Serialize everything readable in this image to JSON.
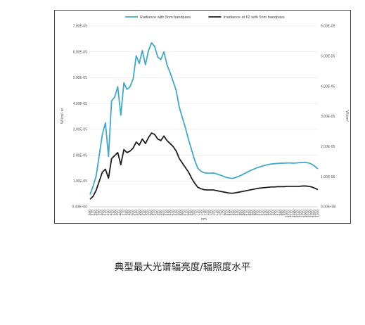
{
  "caption": "典型最大光谱辐亮度/辐照度水平",
  "chart_data": {
    "type": "line",
    "xlabel": "nm",
    "ylabel_left": "W/cm²-sr",
    "ylabel_right": "W/cm²",
    "ylim_left": [
      0,
      7e-05
    ],
    "ylim_right": [
      0,
      6e-05
    ],
    "yticks_left": [
      "0.00E+00",
      "1.00E-05",
      "2.00E-05",
      "3.00E-05",
      "4.00E-05",
      "5.00E-05",
      "6.00E-05",
      "7.00E-05"
    ],
    "yticks_right": [
      "0.00E+00",
      "1.00E-05",
      "2.00E-05",
      "3.00E-05",
      "4.00E-05",
      "5.00E-05",
      "6.00E-05"
    ],
    "legend_position": "top",
    "x": [
      360,
      370,
      380,
      390,
      400,
      410,
      420,
      430,
      440,
      450,
      460,
      470,
      480,
      490,
      500,
      510,
      520,
      530,
      540,
      550,
      560,
      570,
      580,
      590,
      600,
      610,
      620,
      630,
      640,
      650,
      660,
      670,
      680,
      690,
      700,
      710,
      720,
      730,
      740,
      750,
      760,
      770,
      780,
      790,
      800,
      810,
      820,
      830,
      840,
      850,
      860,
      870,
      880,
      890,
      900,
      910,
      920,
      930,
      940,
      950,
      960,
      970,
      980,
      990,
      1000,
      1010,
      1020,
      1030,
      1040,
      1050,
      1060,
      1070,
      1080,
      1090,
      1100
    ],
    "series": [
      {
        "name": "Radiance with 5nm bandpass",
        "axis": "left",
        "color": "#3fa9cc",
        "values": [
          4.8e-06,
          8e-06,
          1.2e-05,
          2e-05,
          2.8e-05,
          3.25e-05,
          1.95e-05,
          4.1e-05,
          4.25e-05,
          4.65e-05,
          3.55e-05,
          4.8e-05,
          4.55e-05,
          4.65e-05,
          4.95e-05,
          5.85e-05,
          5.55e-05,
          6.05e-05,
          5.5e-05,
          6.05e-05,
          6.35e-05,
          6.2e-05,
          5.8e-05,
          5.7e-05,
          6e-05,
          5.5e-05,
          5.2e-05,
          4.85e-05,
          4.5e-05,
          3.85e-05,
          3.45e-05,
          3.05e-05,
          2.6e-05,
          2.2e-05,
          1.8e-05,
          1.5e-05,
          1.38e-05,
          1.32e-05,
          1.3e-05,
          1.3e-05,
          1.31e-05,
          1.28e-05,
          1.24e-05,
          1.2e-05,
          1.15e-05,
          1.12e-05,
          1.1e-05,
          1.12e-05,
          1.17e-05,
          1.22e-05,
          1.28e-05,
          1.34e-05,
          1.4e-05,
          1.45e-05,
          1.5e-05,
          1.54e-05,
          1.58e-05,
          1.61e-05,
          1.64e-05,
          1.66e-05,
          1.67e-05,
          1.68e-05,
          1.69e-05,
          1.69e-05,
          1.7e-05,
          1.7e-05,
          1.69e-05,
          1.7e-05,
          1.71e-05,
          1.72e-05,
          1.72e-05,
          1.7e-05,
          1.65e-05,
          1.57e-05,
          1.47e-05
        ]
      },
      {
        "name": "Irradiance at f/2 with 5nm bandpass",
        "axis": "right",
        "color": "#1e1e1e",
        "values": [
          2.5e-06,
          3.5e-06,
          5.5e-06,
          8.5e-06,
          1.15e-05,
          1.25e-05,
          9.5e-06,
          1.6e-05,
          1.7e-05,
          1.8e-05,
          1.4e-05,
          1.9e-05,
          1.8e-05,
          1.85e-05,
          1.95e-05,
          2.15e-05,
          2.05e-05,
          2.25e-05,
          2.1e-05,
          2.3e-05,
          2.45e-05,
          2.4e-05,
          2.25e-05,
          2.2e-05,
          2.35e-05,
          2.2e-05,
          2.1e-05,
          2e-05,
          1.85e-05,
          1.6e-05,
          1.45e-05,
          1.3e-05,
          1.15e-05,
          9.5e-06,
          7.8e-06,
          6.5e-06,
          6e-06,
          5.7e-06,
          5.6e-06,
          5.6e-06,
          5.6e-06,
          5.4e-06,
          5.2e-06,
          5e-06,
          4.8e-06,
          4.6e-06,
          4.5e-06,
          4.6e-06,
          4.8e-06,
          5e-06,
          5.2e-06,
          5.4e-06,
          5.6e-06,
          5.8e-06,
          6e-06,
          6.2e-06,
          6.3e-06,
          6.4e-06,
          6.5e-06,
          6.6e-06,
          6.6e-06,
          6.7e-06,
          6.7e-06,
          6.7e-06,
          6.8e-06,
          6.8e-06,
          6.8e-06,
          6.8e-06,
          6.8e-06,
          6.9e-06,
          6.9e-06,
          6.8e-06,
          6.6e-06,
          6.2e-06,
          5.7e-06
        ]
      }
    ]
  }
}
